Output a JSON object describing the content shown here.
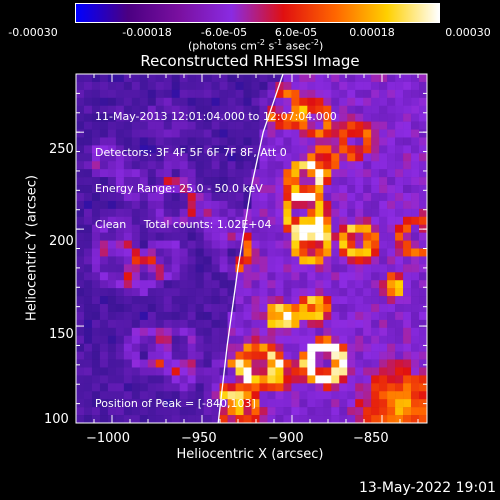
{
  "colorbar": {
    "tick_labels": [
      "-0.00030",
      "-0.00018",
      "-6.0e-05",
      "6.0e-05",
      "0.00018",
      "0.00030"
    ],
    "tick_values": [
      -0.0003,
      -0.00018,
      -6e-05,
      6e-05,
      0.00018,
      0.0003
    ],
    "units_main": "(photons cm",
    "units_tail_1": " s",
    "units_tail_2": " asec",
    "units_close": ")",
    "units_exp1": "-2",
    "units_exp2": "-1",
    "units_exp3": "-2",
    "colors": [
      "#0000ff",
      "#4b0082",
      "#7a10a0",
      "#8a2be2",
      "#e01010",
      "#ff6600",
      "#ffd000",
      "#ffffff"
    ]
  },
  "chart_data": {
    "type": "heatmap",
    "title": "Reconstructed RHESSI Image",
    "xlabel": "Heliocentric X (arcsec)",
    "ylabel": "Heliocentric Y (arcsec)",
    "xlim": [
      -1020,
      -825
    ],
    "ylim": [
      100,
      280
    ],
    "x_ticks": [
      -1000,
      -950,
      -900,
      -850
    ],
    "x_tick_labels": [
      "−1000",
      "−950",
      "−900",
      "−850"
    ],
    "y_ticks": [
      100,
      150,
      200,
      250
    ],
    "y_tick_labels": [
      "100",
      "150",
      "200",
      "250"
    ],
    "limb_curve": [
      [
        -941,
        100
      ],
      [
        -936,
        140
      ],
      [
        -930,
        180
      ],
      [
        -923,
        220
      ],
      [
        -916,
        250
      ],
      [
        -905,
        280
      ]
    ],
    "peak_position": [
      -840,
      103
    ]
  },
  "info": {
    "line1": "11-May-2013 12:01:04.000 to 12:07:04.000",
    "line2": "Detectors: 3F 4F 5F 6F 7F 8F, Att 0",
    "line3": "Energy Range: 25.0 - 50.0 keV",
    "line4": "Clean     Total counts: 1.02E+04",
    "peak": "Position of Peak = [-840,103]"
  },
  "footer": "13-May-2022 19:01"
}
